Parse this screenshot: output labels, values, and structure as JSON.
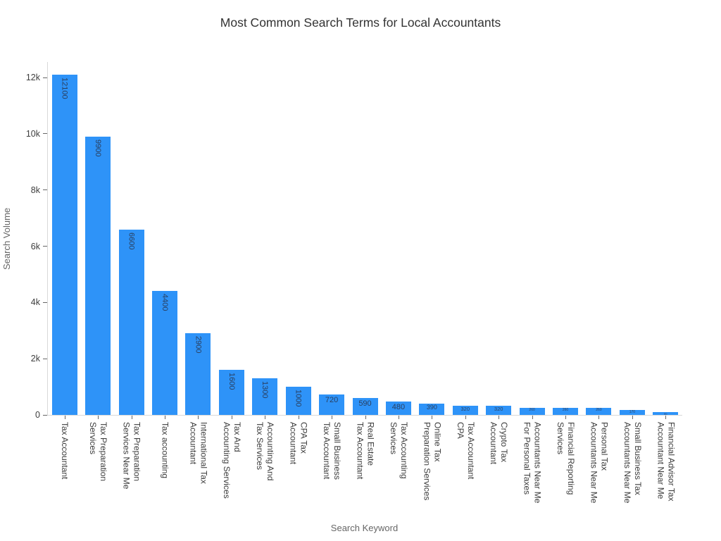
{
  "title": "Most Common Search Terms for Local Accountants",
  "chart_data": {
    "type": "bar",
    "title": "Most Common Search Terms for Local Accountants",
    "xlabel": "Search Keyword",
    "ylabel": "Search Volume",
    "grid": false,
    "legend_position": "none",
    "bar_color": "#2E93F8",
    "value_label_color": "#2a3f5f",
    "ylim": [
      0,
      12700
    ],
    "yticks": [
      {
        "value": 0,
        "label": "0"
      },
      {
        "value": 2000,
        "label": "2k"
      },
      {
        "value": 4000,
        "label": "4k"
      },
      {
        "value": 6000,
        "label": "6k"
      },
      {
        "value": 8000,
        "label": "8k"
      },
      {
        "value": 10000,
        "label": "10k"
      },
      {
        "value": 12000,
        "label": "12k"
      }
    ],
    "categories": [
      "Tax Accountant",
      "Tax Preparation Services",
      "Tax Preparation Services Near Me",
      "Tax accounting",
      "International Tax Accountant",
      "Tax And Accounting Services",
      "Accounting And Tax Services",
      "CPA Tax Accountant",
      "Small Business Tax Accountant",
      "Real Estate Tax Accountant",
      "Tax Accounting Services",
      "Online Tax Preparation Services",
      "Tax Accountant CPA",
      "Crypto Tax Accountant",
      "Accountants Near Me For Personal Taxes",
      "Financial Reporting Services",
      "Personal Tax Accountants Near Me",
      "Small Business Tax Accountants Near Me",
      "Financial Advisor Tax Accountant Near Me"
    ],
    "category_lines": [
      [
        "Tax Accountant"
      ],
      [
        "Tax Preparation",
        "Services"
      ],
      [
        "Tax Preparation",
        "Services Near Me"
      ],
      [
        "Tax accounting"
      ],
      [
        "International Tax",
        "Accountant"
      ],
      [
        "Tax And",
        "Accounting Services"
      ],
      [
        "Accounting And",
        "Tax Services"
      ],
      [
        "CPA Tax",
        "Accountant"
      ],
      [
        "Small Business",
        "Tax Accountant"
      ],
      [
        "Real Estate",
        "Tax Accountant"
      ],
      [
        "Tax Accounting",
        "Services"
      ],
      [
        "Online Tax",
        "Preparation Services"
      ],
      [
        "Tax Accountant",
        "CPA"
      ],
      [
        "Crypto Tax",
        "Accountant"
      ],
      [
        "Accountants Near Me",
        "For Personal Taxes"
      ],
      [
        "Financial Reporting",
        "Services"
      ],
      [
        "Personal Tax",
        "Accountants Near Me"
      ],
      [
        "Small Business Tax",
        "Accountants Near Me"
      ],
      [
        "Financial Advisor Tax",
        "Accountant Near Me"
      ]
    ],
    "values": [
      12100,
      9900,
      6600,
      4400,
      2900,
      1600,
      1300,
      1000,
      720,
      590,
      480,
      390,
      320,
      320,
      260,
      260,
      260,
      170,
      90
    ],
    "bar_value_labels": [
      "12100",
      "9900",
      "6600",
      "4400",
      "2900",
      "1600",
      "1300",
      "1000",
      "720",
      "590",
      "480",
      "390",
      "320",
      "320",
      "260",
      "260",
      "260",
      "170",
      "90"
    ]
  }
}
